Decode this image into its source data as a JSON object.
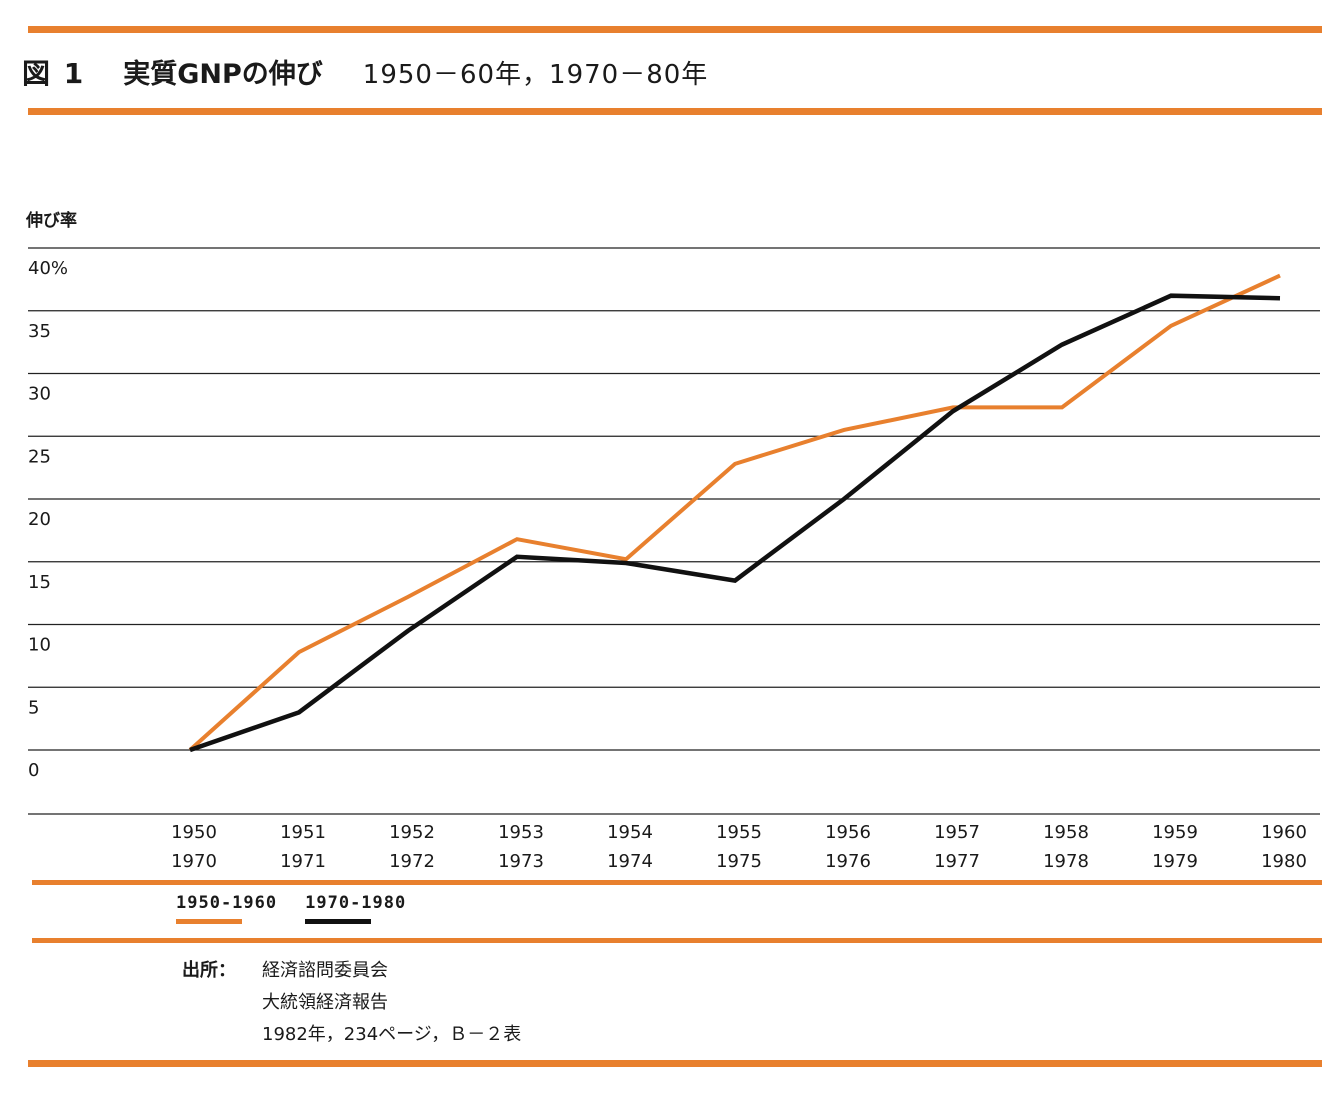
{
  "figure": {
    "label": "図 1",
    "title": "実質GNPの伸び",
    "subtitle": "1950－60年，1970－80年"
  },
  "colors": {
    "accent": "#e8802e",
    "series_1950": "#e8802e",
    "series_1970": "#111111",
    "grid": "#222222"
  },
  "chart_data": {
    "type": "line",
    "ylabel": "伸び率",
    "ylim": [
      0,
      40
    ],
    "y_ticks": [
      "40%",
      "35",
      "30",
      "25",
      "20",
      "15",
      "10",
      "5",
      "0"
    ],
    "categories": [
      [
        "1950",
        "1970"
      ],
      [
        "1951",
        "1971"
      ],
      [
        "1952",
        "1972"
      ],
      [
        "1953",
        "1973"
      ],
      [
        "1954",
        "1974"
      ],
      [
        "1955",
        "1975"
      ],
      [
        "1956",
        "1976"
      ],
      [
        "1957",
        "1977"
      ],
      [
        "1958",
        "1978"
      ],
      [
        "1959",
        "1979"
      ],
      [
        "1960",
        "1980"
      ]
    ],
    "series": [
      {
        "name": "1950-1960",
        "color": "#e8802e",
        "values": [
          0,
          7.8,
          12.2,
          16.8,
          15.2,
          22.8,
          25.5,
          27.3,
          27.3,
          33.8,
          37.8
        ]
      },
      {
        "name": "1970-1980",
        "color": "#111111",
        "values": [
          0,
          3.0,
          9.5,
          15.4,
          14.9,
          13.5,
          20.0,
          27.0,
          32.3,
          36.2,
          36.0
        ]
      }
    ],
    "grid": true
  },
  "legend": [
    {
      "label": "1950-1960",
      "color": "#e8802e"
    },
    {
      "label": "1970-1980",
      "color": "#111111"
    }
  ],
  "source": {
    "label": "出所：",
    "lines": [
      "経済諮問委員会",
      "大統領経済報告",
      "1982年，234ページ，Ｂ－２表"
    ]
  }
}
